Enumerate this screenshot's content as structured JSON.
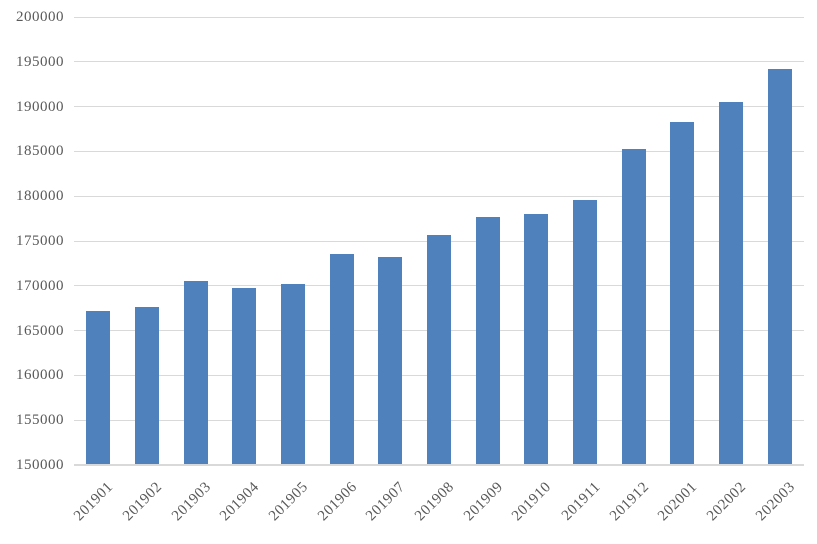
{
  "chart_data": {
    "type": "bar",
    "title": "",
    "xlabel": "",
    "ylabel": "",
    "categories": [
      "201901",
      "201902",
      "201903",
      "201904",
      "201905",
      "201906",
      "201907",
      "201908",
      "201909",
      "201910",
      "201911",
      "201912",
      "202001",
      "202002",
      "202003"
    ],
    "values": [
      167200,
      167600,
      170500,
      169800,
      170200,
      173500,
      173200,
      175700,
      177700,
      178000,
      179600,
      185300,
      188300,
      190500,
      194200
    ],
    "ylim": [
      150000,
      200000
    ],
    "ytick_step": 5000,
    "ytick_labels": [
      "150000",
      "155000",
      "160000",
      "165000",
      "170000",
      "175000",
      "180000",
      "185000",
      "190000",
      "195000",
      "200000"
    ],
    "grid": "horizontal",
    "legend": "none",
    "colors": {
      "bar": "#4F81BD",
      "gridline": "#D9D9D9",
      "axis_line": "#D9D9D9",
      "axis_text": "#595959",
      "background": "#FFFFFF"
    }
  }
}
